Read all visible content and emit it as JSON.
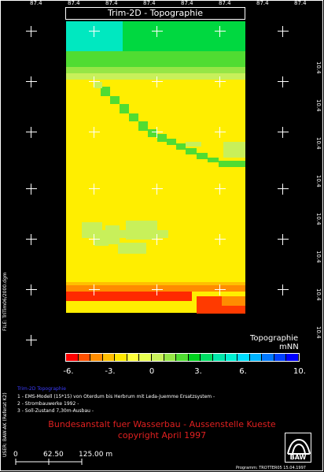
{
  "title": "Trim-2D - Topographie",
  "top_ticks": [
    "87.4",
    "87.4",
    "87.4",
    "87.4",
    "87.4",
    "87.4",
    "87.4",
    "87.4"
  ],
  "right_ticks": [
    "10.4",
    "10.4",
    "10.4",
    "10.4",
    "10.4",
    "10.4",
    "10.4",
    "10.4"
  ],
  "legend": {
    "title": "Topographie",
    "unit": "mNN",
    "ticks": [
      "-6.",
      "-3.",
      "0",
      "3.",
      "6.",
      "10."
    ],
    "colors": [
      "#ff0000",
      "#ff5000",
      "#ff8c00",
      "#ffbe00",
      "#ffe600",
      "#ffff3c",
      "#e6ff50",
      "#c8f05a",
      "#96e646",
      "#50dc32",
      "#00d21e",
      "#00dc64",
      "#00e6aa",
      "#00f0d2",
      "#00dcff",
      "#00b4ff",
      "#0078ff",
      "#0040ff",
      "#0000ff"
    ]
  },
  "info": {
    "header": "Trim-2D Topographie",
    "lines": [
      "1 - EMS-Modell (15*15) von Oterdum bis Herbrum mit Leda-Juemme Ersatzsystem -",
      "2 - Strombauwerke 1992 -",
      "3 - Soll-Zustand 7,30m-Ausbau -"
    ]
  },
  "institution": {
    "line1": "Bundesanstalt fuer Wasserbau - Aussenstelle Kueste",
    "line2": "copyright April 1997"
  },
  "side_texts": {
    "file": "FILE: TriTim06/2000.dgm",
    "user": "USER: BAW-AK (Referat K2)"
  },
  "scale": {
    "labels": [
      "0",
      "62.50",
      "125.00 m"
    ]
  },
  "footer": "Programm: TROTTER05 15.04.1997",
  "logo_text": "BAW"
}
